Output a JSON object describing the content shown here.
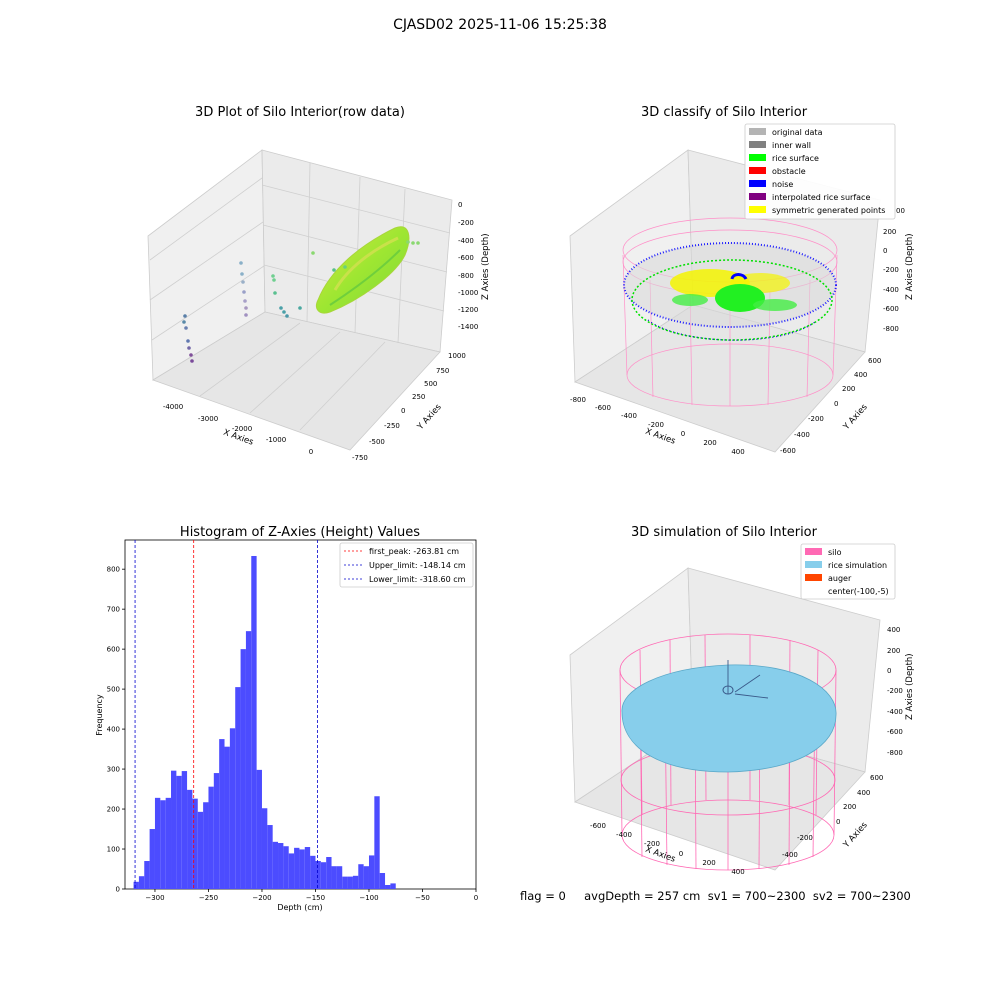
{
  "figure": {
    "title": "CJASD02 2025-11-06 15:25:38",
    "status": "flag = 0     avgDepth = 257 cm  sv1 = 700~2300  sv2 = 700~2300"
  },
  "colors": {
    "histogram_bar": "#4c4cff",
    "first_peak_line": "#ff0000",
    "limit_lines": "#0000cc",
    "original_data": "#b4b4b4",
    "inner_wall": "#808080",
    "rice_surface": "#00ff00",
    "obstacle": "#ff0000",
    "noise": "#0000ff",
    "interpolated_rice_surface": "#800080",
    "symmetric_generated_points": "#ffff00",
    "silo": "#ff69b4",
    "rice_simulation": "#87ceeb",
    "auger": "#ff4500"
  },
  "chart_data": [
    {
      "type": "scatter",
      "title": "3D Plot of Silo Interior(row data)",
      "projection": "3d",
      "xlabel": "X Axies",
      "ylabel": "Y Axies",
      "zlabel": "Z Axies (Depth)",
      "x_ticks": [
        "-4000",
        "-3000",
        "-2000",
        "-1000",
        "0"
      ],
      "y_ticks": [
        "-750",
        "-500",
        "-250",
        "0",
        "250",
        "500",
        "750",
        "1000"
      ],
      "z_ticks": [
        "0",
        "-200",
        "-400",
        "-600",
        "-800",
        "-1000",
        "-1200",
        "-1400"
      ],
      "grid": true
    },
    {
      "type": "scatter",
      "title": "3D classify of Silo Interior",
      "projection": "3d",
      "xlabel": "X Axies",
      "ylabel": "Y Axies",
      "zlabel": "Z Axies (Depth)",
      "x_ticks": [
        "-800",
        "-600",
        "-400",
        "-200",
        "0",
        "200",
        "400"
      ],
      "y_ticks": [
        "-600",
        "-400",
        "-200",
        "0",
        "200",
        "400",
        "600"
      ],
      "z_ticks": [
        "200",
        "0",
        "-200",
        "-400",
        "-600",
        "-800"
      ],
      "z_ticks_partial": [
        "00"
      ],
      "legend": [
        "original data",
        "inner wall",
        "rice surface",
        "obstacle",
        "noise",
        "interpolated rice surface",
        "symmetric generated points"
      ],
      "legend_position": "top-right",
      "grid": true
    },
    {
      "type": "bar",
      "title": "Histogram of Z-Axies (Height) Values",
      "xlabel": "Depth (cm)",
      "ylabel": "Frequency",
      "xlim": [
        -328,
        0
      ],
      "ylim": [
        0,
        873
      ],
      "x_ticks": [
        -300,
        -250,
        -200,
        -150,
        -100,
        -50,
        0
      ],
      "y_ticks": [
        0,
        100,
        200,
        300,
        400,
        500,
        600,
        700,
        800
      ],
      "bin_width": 5,
      "bin_starts": [
        -325,
        -320,
        -315,
        -310,
        -305,
        -300,
        -295,
        -290,
        -285,
        -280,
        -275,
        -270,
        -265,
        -260,
        -255,
        -250,
        -245,
        -240,
        -235,
        -230,
        -225,
        -220,
        -215,
        -210,
        -205,
        -200,
        -195,
        -190,
        -185,
        -180,
        -175,
        -170,
        -165,
        -160,
        -155,
        -150,
        -145,
        -140,
        -135,
        -130,
        -125,
        -120,
        -115,
        -110,
        -105,
        -100,
        -95,
        -90,
        -85,
        -80,
        -75,
        -70,
        -65,
        -60,
        -55,
        -50,
        -45,
        -40,
        -35,
        -30,
        -25,
        -20
      ],
      "values": [
        0,
        18,
        32,
        70,
        150,
        228,
        222,
        228,
        296,
        283,
        295,
        248,
        226,
        193,
        217,
        256,
        290,
        375,
        356,
        402,
        505,
        600,
        645,
        833,
        298,
        202,
        160,
        118,
        115,
        107,
        89,
        103,
        99,
        105,
        83,
        70,
        67,
        80,
        57,
        57,
        31,
        31,
        33,
        62,
        57,
        84,
        232,
        40,
        10,
        14,
        0,
        0,
        0,
        0,
        0,
        0,
        0,
        0,
        0,
        0,
        0,
        0
      ],
      "ref_lines": [
        {
          "label": "first_peak: -263.81 cm",
          "x": -263.81,
          "style": "dashed",
          "color": "red"
        },
        {
          "label": "Upper_limit: -148.14 cm",
          "x": -148.14,
          "style": "dashed",
          "color": "blue"
        },
        {
          "label": "Lower_limit: -318.60 cm",
          "x": -318.6,
          "style": "dashed",
          "color": "blue"
        }
      ],
      "legend_position": "top-right",
      "grid": false
    },
    {
      "type": "scatter",
      "title": "3D simulation of Silo Interior",
      "projection": "3d",
      "xlabel": "X Axies",
      "ylabel": "Y Axies",
      "zlabel": "Z Axies (Depth)",
      "x_ticks": [
        "-600",
        "-400",
        "-200",
        "0",
        "200",
        "400"
      ],
      "y_ticks": [
        "-400",
        "-200",
        "0",
        "200",
        "400",
        "600"
      ],
      "y_ticks_partial": [
        "600"
      ],
      "z_ticks": [
        "400",
        "200",
        "0",
        "-200",
        "-400",
        "-600",
        "-800"
      ],
      "legend": [
        "silo",
        "rice simulation",
        "auger",
        "center(-100,-5)"
      ],
      "legend_position": "top-right",
      "grid": true
    }
  ]
}
